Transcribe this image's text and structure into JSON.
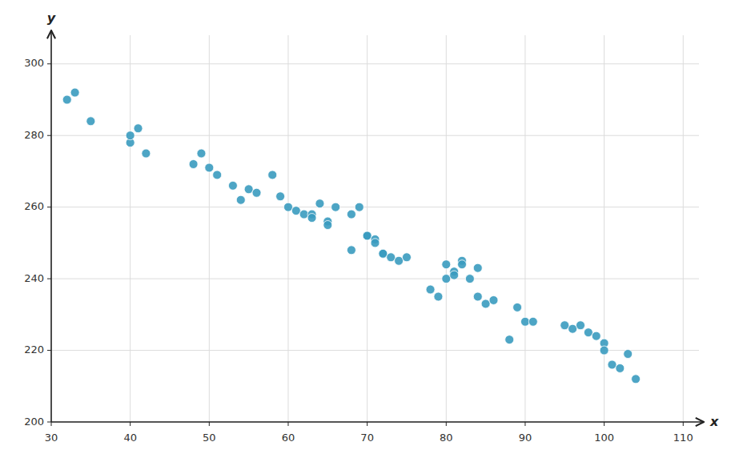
{
  "chart_data": {
    "type": "scatter",
    "x": [
      32,
      33,
      35,
      40,
      40,
      41,
      42,
      48,
      49,
      50,
      51,
      53,
      54,
      55,
      56,
      58,
      59,
      60,
      61,
      62,
      63,
      63,
      64,
      65,
      65,
      66,
      68,
      68,
      69,
      70,
      70,
      71,
      71,
      72,
      72,
      73,
      74,
      75,
      78,
      79,
      80,
      80,
      81,
      81,
      82,
      82,
      83,
      84,
      84,
      85,
      86,
      88,
      89,
      90,
      91,
      95,
      96,
      97,
      98,
      99,
      100,
      100,
      101,
      102,
      103,
      104
    ],
    "y": [
      290,
      292,
      284,
      278,
      280,
      282,
      275,
      272,
      275,
      271,
      269,
      266,
      262,
      265,
      264,
      269,
      263,
      260,
      259,
      258,
      258,
      257,
      261,
      256,
      255,
      260,
      248,
      258,
      260,
      252,
      252,
      251,
      250,
      247,
      247,
      246,
      245,
      246,
      237,
      235,
      240,
      244,
      242,
      241,
      245,
      244,
      240,
      243,
      235,
      233,
      234,
      223,
      232,
      228,
      228,
      227,
      226,
      227,
      225,
      224,
      222,
      220,
      216,
      215,
      219,
      212
    ],
    "color": "#3a9bbf",
    "xlim": [
      30,
      112
    ],
    "ylim": [
      200,
      308
    ],
    "xticks": [
      30,
      40,
      50,
      60,
      70,
      80,
      90,
      100,
      110
    ],
    "yticks": [
      200,
      220,
      240,
      260,
      280,
      300
    ],
    "xlabel": "x",
    "ylabel": "y",
    "grid": true
  }
}
